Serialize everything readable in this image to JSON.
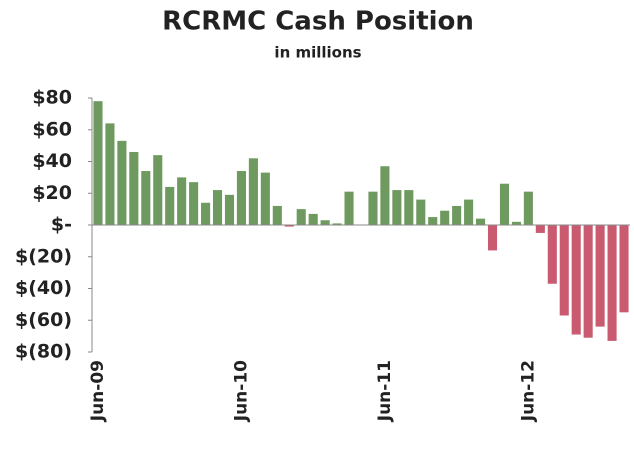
{
  "chart_data": {
    "type": "bar",
    "title": "RCRMC Cash Position",
    "subtitle": "in millions",
    "categories": [
      "Jun-09",
      null,
      null,
      null,
      null,
      null,
      null,
      null,
      null,
      null,
      null,
      null,
      "Jun-10",
      null,
      null,
      null,
      null,
      null,
      null,
      null,
      null,
      null,
      null,
      null,
      "Jun-11",
      null,
      null,
      null,
      null,
      null,
      null,
      null,
      null,
      null,
      null,
      null,
      "Jun-12",
      null,
      null,
      null,
      null,
      null,
      null,
      null,
      null
    ],
    "values": [
      78,
      64,
      53,
      46,
      34,
      44,
      24,
      30,
      27,
      14,
      22,
      19,
      34,
      42,
      33,
      12,
      -1,
      10,
      7,
      3,
      1,
      21,
      0,
      21,
      37,
      22,
      22,
      16,
      5,
      9,
      12,
      16,
      4,
      -16,
      26,
      2,
      21,
      -5,
      -37,
      -57,
      -69,
      -71,
      -64,
      -73,
      -55
    ],
    "positive_color": "#6f9a5f",
    "negative_color": "#c95a6f",
    "ylim": [
      -80,
      80
    ],
    "yticks": [
      {
        "value": 80,
        "label": "$80"
      },
      {
        "value": 60,
        "label": "$60"
      },
      {
        "value": 40,
        "label": "$40"
      },
      {
        "value": 20,
        "label": "$20"
      },
      {
        "value": 0,
        "label": "$-"
      },
      {
        "value": -20,
        "label": "$(20)"
      },
      {
        "value": -40,
        "label": "$(40)"
      },
      {
        "value": -60,
        "label": "$(60)"
      },
      {
        "value": -80,
        "label": "$(80)"
      }
    ],
    "grid": false
  }
}
